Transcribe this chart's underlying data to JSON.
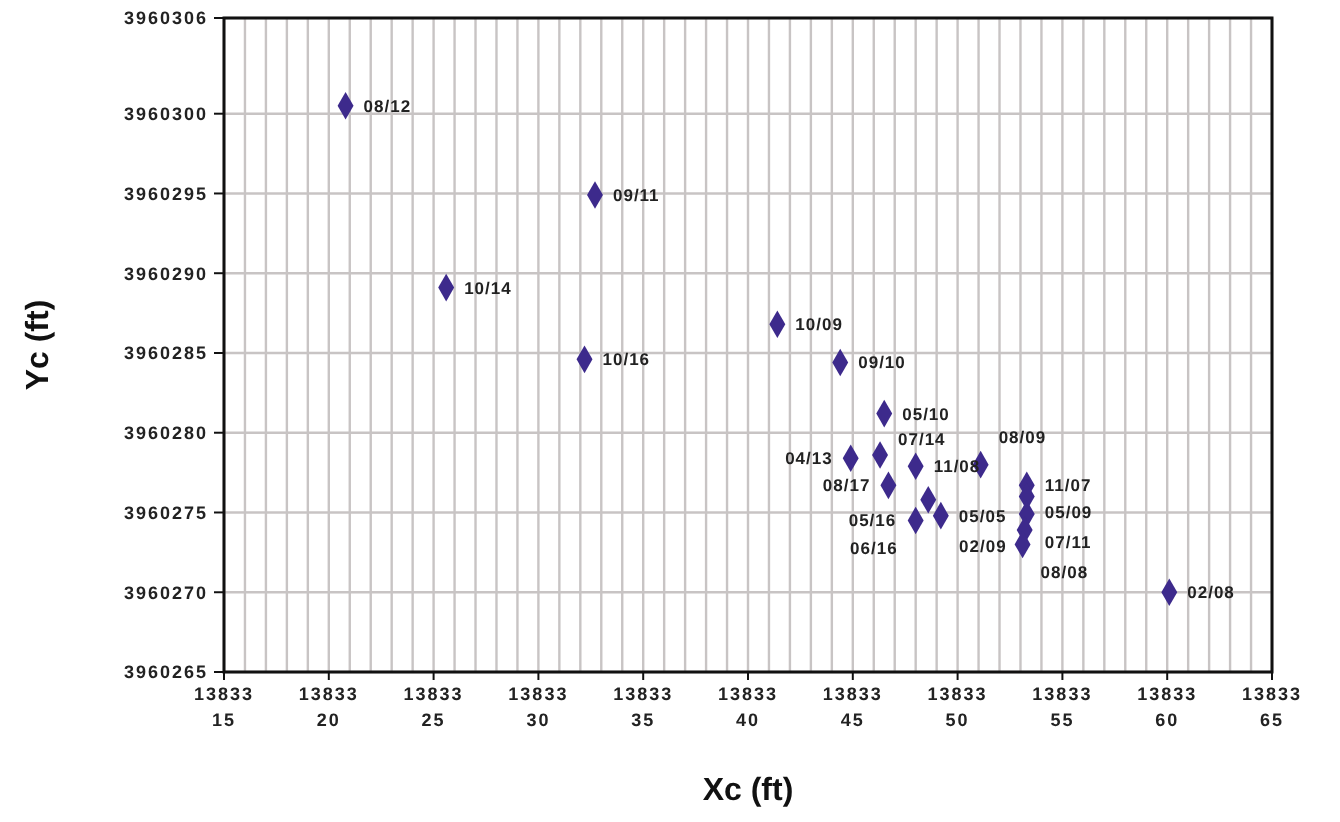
{
  "chart_data": {
    "type": "scatter",
    "xlabel": "Xc (ft)",
    "ylabel": "Yc (ft)",
    "color": "#3d2a8c",
    "marker": "diamond",
    "grid": true,
    "x": [
      1383320.8,
      1383332.7,
      1383325.6,
      1383332.2,
      1383341.4,
      1383344.4,
      1383346.5,
      1383344.9,
      1383346.3,
      1383348.0,
      1383351.1,
      1383346.7,
      1383348.6,
      1383353.3,
      1383353.3,
      1383353.3,
      1383353.2,
      1383353.1,
      1383348.0,
      1383349.2,
      1383360.1
    ],
    "values": [
      3960300.5,
      3960294.9,
      3960289.1,
      3960284.6,
      3960286.8,
      3960284.4,
      3960281.2,
      3960278.4,
      3960278.6,
      3960277.9,
      3960278.0,
      3960276.7,
      3960275.8,
      3960276.7,
      3960276.0,
      3960274.9,
      3960273.9,
      3960273.0,
      3960274.5,
      3960274.8,
      3960270.0
    ],
    "xlim": [
      1383315,
      1383365
    ],
    "xticks": [
      1383315,
      {
        "value": 1383316,
        "label": null
      },
      {
        "value": 1383317,
        "label": null
      },
      {
        "value": 1383318,
        "label": null
      },
      {
        "value": 1383319,
        "label": null
      },
      1383320,
      {
        "value": 1383321,
        "label": null
      },
      {
        "value": 1383322,
        "label": null
      },
      {
        "value": 1383323,
        "label": null
      },
      {
        "value": 1383324,
        "label": null
      },
      1383325,
      {
        "value": 1383326,
        "label": null
      },
      {
        "value": 1383327,
        "label": null
      },
      {
        "value": 1383328,
        "label": null
      },
      {
        "value": 1383329,
        "label": null
      },
      1383330,
      {
        "value": 1383331,
        "label": null
      },
      {
        "value": 1383332,
        "label": null
      },
      {
        "value": 1383333,
        "label": null
      },
      {
        "value": 1383334,
        "label": null
      },
      1383335,
      {
        "value": 1383336,
        "label": null
      },
      {
        "value": 1383337,
        "label": null
      },
      {
        "value": 1383338,
        "label": null
      },
      {
        "value": 1383339,
        "label": null
      },
      1383340,
      {
        "value": 1383341,
        "label": null
      },
      {
        "value": 1383342,
        "label": null
      },
      {
        "value": 1383343,
        "label": null
      },
      {
        "value": 1383344,
        "label": null
      },
      1383345,
      {
        "value": 1383346,
        "label": null
      },
      {
        "value": 1383347,
        "label": null
      },
      {
        "value": 1383348,
        "label": null
      },
      {
        "value": 1383349,
        "label": null
      },
      1383350,
      {
        "value": 1383351,
        "label": null
      },
      {
        "value": 1383352,
        "label": null
      },
      {
        "value": 1383353,
        "label": null
      },
      {
        "value": 1383354,
        "label": null
      },
      1383355,
      {
        "value": 1383356,
        "label": null
      },
      {
        "value": 1383357,
        "label": null
      },
      {
        "value": 1383358,
        "label": null
      },
      {
        "value": 1383359,
        "label": null
      },
      1383360,
      {
        "value": 1383361,
        "label": null
      },
      {
        "value": 1383362,
        "label": null
      },
      {
        "value": 1383363,
        "label": null
      },
      {
        "value": 1383364,
        "label": null
      },
      1383365
    ],
    "ylim": [
      3960265,
      3960306
    ],
    "yticks": [
      3960265,
      3960270,
      3960275,
      3960280,
      3960285,
      3960290,
      3960295,
      3960300,
      3960306
    ],
    "annotations": [
      {
        "text": "08/12",
        "x": 1383320.8,
        "y": 3960300.5
      },
      {
        "text": "09/11",
        "x": 1383332.7,
        "y": 3960294.9
      },
      {
        "text": "10/14",
        "x": 1383325.6,
        "y": 3960289.1
      },
      {
        "text": "10/16",
        "x": 1383332.2,
        "y": 3960284.6
      },
      {
        "text": "10/09",
        "x": 1383341.4,
        "y": 3960286.8
      },
      {
        "text": "09/10",
        "x": 1383344.4,
        "y": 3960284.4
      },
      {
        "text": "05/10",
        "x": 1383346.5,
        "y": 3960281.2
      },
      {
        "text": "04/13",
        "x": 1383344.9,
        "y": 3960278.4
      },
      {
        "text": "07/14",
        "x": 1383346.3,
        "y": 3960278.6
      },
      {
        "text": "11/08",
        "x": 1383348.0,
        "y": 3960277.9
      },
      {
        "text": "08/09",
        "x": 1383351.1,
        "y": 3960278.0
      },
      {
        "text": "08/17",
        "x": 1383346.7,
        "y": 3960276.7
      },
      {
        "text": "05/16",
        "x": 1383348.6,
        "y": 3960275.8
      },
      {
        "text": "11/07",
        "x": 1383353.3,
        "y": 3960276.7
      },
      {
        "text": "05/09",
        "x": 1383353.3,
        "y": 3960276.0
      },
      {
        "text": "07/11",
        "x": 1383353.3,
        "y": 3960274.9
      },
      {
        "text": "02/09",
        "x": 1383353.2,
        "y": 3960273.9
      },
      {
        "text": "08/08",
        "x": 1383353.1,
        "y": 3960273.0
      },
      {
        "text": "06/16",
        "x": 1383348.0,
        "y": 3960274.5
      },
      {
        "text": "05/05",
        "x": 1383349.2,
        "y": 3960274.8
      },
      {
        "text": "02/08",
        "x": 1383360.1,
        "y": 3960270.0
      }
    ]
  }
}
